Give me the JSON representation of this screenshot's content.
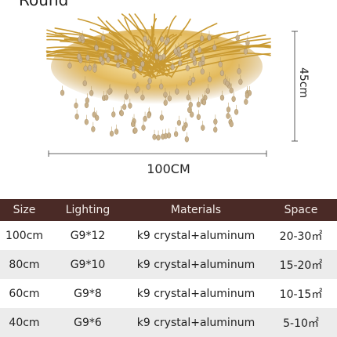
{
  "header": {
    "title": "Round"
  },
  "dimensions": {
    "height": "45cm",
    "width": "100CM"
  },
  "table": {
    "headers": [
      "Size",
      "Lighting",
      "Materials",
      "Space"
    ],
    "rows": [
      [
        "100cm",
        "G9*12",
        "k9 crystal+aluminum",
        "20-30㎡"
      ],
      [
        "80cm",
        "G9*10",
        "k9 crystal+aluminum",
        "15-20㎡"
      ],
      [
        "60cm",
        "G9*8",
        "k9 crystal+aluminum",
        "10-15㎡"
      ],
      [
        "40cm",
        "G9*6",
        "k9 crystal+aluminum",
        "5-10㎡"
      ]
    ]
  },
  "colors": {
    "header_bg": "#4a2a26",
    "row_alt": "#ececec",
    "gold": "#d4a744",
    "crystal": "#c9b79a"
  }
}
